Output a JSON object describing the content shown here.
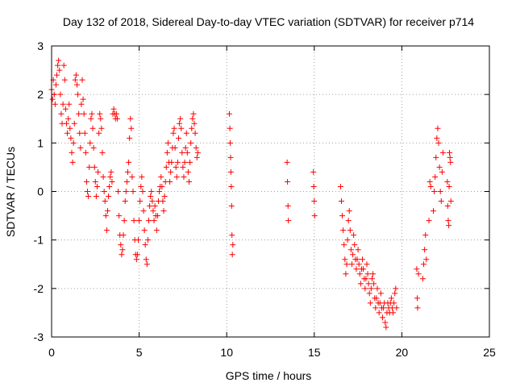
{
  "chart_data": {
    "type": "scatter",
    "title": "Day 132 of 2018, Sidereal Day-to-day VTEC variation (SDTVAR) for receiver p714",
    "xlabel": "GPS time / hours",
    "ylabel": "SDTVAR / TECUs",
    "xlim": [
      0,
      25
    ],
    "ylim": [
      -3,
      3
    ],
    "xticks": [
      "0",
      "5",
      "10",
      "15",
      "20",
      "25"
    ],
    "yticks": [
      "-3",
      "-2",
      "-1",
      "0",
      "1",
      "2",
      "3"
    ],
    "grid": true,
    "marker": "+",
    "marker_color": "#ff0000",
    "series": [
      {
        "name": "SDTVAR",
        "points": [
          [
            0.0,
            2.1
          ],
          [
            0.05,
            1.9
          ],
          [
            0.1,
            2.3
          ],
          [
            0.15,
            2.0
          ],
          [
            0.2,
            1.8
          ],
          [
            0.25,
            2.2
          ],
          [
            0.3,
            2.4
          ],
          [
            0.35,
            2.6
          ],
          [
            0.4,
            2.7
          ],
          [
            0.45,
            2.5
          ],
          [
            0.5,
            2.0
          ],
          [
            0.55,
            1.6
          ],
          [
            0.6,
            1.4
          ],
          [
            0.65,
            1.8
          ],
          [
            0.7,
            2.6
          ],
          [
            0.75,
            2.3
          ],
          [
            0.8,
            1.7
          ],
          [
            0.85,
            1.4
          ],
          [
            0.9,
            1.2
          ],
          [
            0.95,
            1.5
          ],
          [
            1.0,
            1.8
          ],
          [
            1.05,
            1.3
          ],
          [
            1.1,
            1.1
          ],
          [
            1.15,
            0.8
          ],
          [
            1.2,
            0.6
          ],
          [
            1.25,
            1.0
          ],
          [
            1.3,
            1.4
          ],
          [
            1.35,
            2.3
          ],
          [
            1.4,
            2.4
          ],
          [
            1.45,
            2.2
          ],
          [
            1.5,
            2.0
          ],
          [
            1.55,
            1.6
          ],
          [
            1.6,
            1.2
          ],
          [
            1.65,
            0.9
          ],
          [
            1.7,
            1.8
          ],
          [
            1.75,
            2.3
          ],
          [
            1.8,
            1.9
          ],
          [
            1.85,
            1.6
          ],
          [
            1.9,
            1.2
          ],
          [
            1.95,
            0.8
          ],
          [
            2.0,
            0.2
          ],
          [
            2.05,
            0.0
          ],
          [
            2.1,
            -0.1
          ],
          [
            2.15,
            0.5
          ],
          [
            2.2,
            1.0
          ],
          [
            2.25,
            1.5
          ],
          [
            2.3,
            1.6
          ],
          [
            2.35,
            1.3
          ],
          [
            2.4,
            0.9
          ],
          [
            2.45,
            0.5
          ],
          [
            2.5,
            0.2
          ],
          [
            2.55,
            -0.1
          ],
          [
            2.6,
            0.1
          ],
          [
            2.65,
            0.4
          ],
          [
            2.7,
            1.2
          ],
          [
            2.75,
            1.6
          ],
          [
            2.8,
            1.5
          ],
          [
            2.85,
            1.3
          ],
          [
            2.9,
            0.8
          ],
          [
            2.95,
            0.3
          ],
          [
            3.0,
            0.0
          ],
          [
            3.05,
            -0.2
          ],
          [
            3.1,
            -0.5
          ],
          [
            3.15,
            -0.8
          ],
          [
            3.2,
            -0.4
          ],
          [
            3.25,
            -0.1
          ],
          [
            3.3,
            0.1
          ],
          [
            3.35,
            0.3
          ],
          [
            3.4,
            0.4
          ],
          [
            3.45,
            0.2
          ],
          [
            3.5,
            1.6
          ],
          [
            3.55,
            1.7
          ],
          [
            3.6,
            1.6
          ],
          [
            3.65,
            1.5
          ],
          [
            3.7,
            1.6
          ],
          [
            3.75,
            1.5
          ],
          [
            3.8,
            0.0
          ],
          [
            3.85,
            -0.5
          ],
          [
            3.9,
            -0.9
          ],
          [
            3.95,
            -1.1
          ],
          [
            4.0,
            -1.3
          ],
          [
            4.05,
            -1.2
          ],
          [
            4.1,
            -0.9
          ],
          [
            4.15,
            -0.6
          ],
          [
            4.2,
            -0.2
          ],
          [
            4.25,
            0.0
          ],
          [
            4.3,
            0.2
          ],
          [
            4.35,
            0.4
          ],
          [
            4.4,
            0.6
          ],
          [
            4.45,
            1.1
          ],
          [
            4.5,
            1.5
          ],
          [
            4.55,
            1.3
          ],
          [
            4.6,
            0.3
          ],
          [
            4.65,
            0.0
          ],
          [
            4.7,
            -0.6
          ],
          [
            4.75,
            -1.0
          ],
          [
            4.8,
            -1.3
          ],
          [
            4.85,
            -1.4
          ],
          [
            4.9,
            -1.3
          ],
          [
            4.95,
            -1.0
          ],
          [
            5.0,
            -0.6
          ],
          [
            5.05,
            -0.2
          ],
          [
            5.1,
            0.1
          ],
          [
            5.15,
            0.3
          ],
          [
            5.2,
            0.0
          ],
          [
            5.25,
            -0.4
          ],
          [
            5.3,
            -0.8
          ],
          [
            5.35,
            -1.1
          ],
          [
            5.4,
            -1.4
          ],
          [
            5.45,
            -1.5
          ],
          [
            5.5,
            -1.0
          ],
          [
            5.55,
            -0.6
          ],
          [
            5.6,
            -0.3
          ],
          [
            5.65,
            -0.1
          ],
          [
            5.7,
            0.0
          ],
          [
            5.75,
            -0.2
          ],
          [
            5.8,
            -0.4
          ],
          [
            5.85,
            -0.6
          ],
          [
            5.9,
            -0.3
          ],
          [
            5.95,
            -0.5
          ],
          [
            6.0,
            -0.8
          ],
          [
            6.05,
            -0.5
          ],
          [
            6.1,
            -0.2
          ],
          [
            6.15,
            0.0
          ],
          [
            6.2,
            0.1
          ],
          [
            6.25,
            0.3
          ],
          [
            6.3,
            0.1
          ],
          [
            6.35,
            -0.2
          ],
          [
            6.4,
            -0.4
          ],
          [
            6.45,
            -0.1
          ],
          [
            6.5,
            0.2
          ],
          [
            6.55,
            0.5
          ],
          [
            6.6,
            0.8
          ],
          [
            6.65,
            1.0
          ],
          [
            6.7,
            0.6
          ],
          [
            6.75,
            0.2
          ],
          [
            6.8,
            0.4
          ],
          [
            6.85,
            0.6
          ],
          [
            6.9,
            0.9
          ],
          [
            6.95,
            1.2
          ],
          [
            7.0,
            1.3
          ],
          [
            7.05,
            0.9
          ],
          [
            7.1,
            0.5
          ],
          [
            7.15,
            0.3
          ],
          [
            7.2,
            0.6
          ],
          [
            7.25,
            1.1
          ],
          [
            7.3,
            1.4
          ],
          [
            7.35,
            1.5
          ],
          [
            7.4,
            1.3
          ],
          [
            7.45,
            0.8
          ],
          [
            7.5,
            0.5
          ],
          [
            7.55,
            0.3
          ],
          [
            7.6,
            0.6
          ],
          [
            7.65,
            0.9
          ],
          [
            7.7,
            1.2
          ],
          [
            7.75,
            0.8
          ],
          [
            7.8,
            0.4
          ],
          [
            7.85,
            0.2
          ],
          [
            7.9,
            0.6
          ],
          [
            7.95,
            1.0
          ],
          [
            8.0,
            1.3
          ],
          [
            8.05,
            1.5
          ],
          [
            8.1,
            1.6
          ],
          [
            8.15,
            1.4
          ],
          [
            8.2,
            1.2
          ],
          [
            8.25,
            0.9
          ],
          [
            8.3,
            0.7
          ],
          [
            8.35,
            0.8
          ],
          [
            10.15,
            1.6
          ],
          [
            10.18,
            1.3
          ],
          [
            10.2,
            1.0
          ],
          [
            10.22,
            0.7
          ],
          [
            10.24,
            0.4
          ],
          [
            10.26,
            0.1
          ],
          [
            10.28,
            -0.3
          ],
          [
            10.3,
            -0.9
          ],
          [
            10.32,
            -1.3
          ],
          [
            10.35,
            -1.1
          ],
          [
            13.45,
            0.6
          ],
          [
            13.47,
            0.2
          ],
          [
            13.5,
            -0.3
          ],
          [
            13.52,
            -0.6
          ],
          [
            14.95,
            0.4
          ],
          [
            14.97,
            0.1
          ],
          [
            15.0,
            -0.2
          ],
          [
            15.02,
            -0.5
          ],
          [
            16.5,
            0.1
          ],
          [
            16.55,
            -0.2
          ],
          [
            16.6,
            -0.5
          ],
          [
            16.65,
            -0.8
          ],
          [
            16.7,
            -1.1
          ],
          [
            16.75,
            -1.4
          ],
          [
            16.8,
            -1.7
          ],
          [
            16.85,
            -1.5
          ],
          [
            16.9,
            -1.0
          ],
          [
            16.95,
            -0.6
          ],
          [
            17.0,
            -0.4
          ],
          [
            17.05,
            -0.8
          ],
          [
            17.1,
            -1.2
          ],
          [
            17.15,
            -1.5
          ],
          [
            17.2,
            -1.3
          ],
          [
            17.25,
            -0.9
          ],
          [
            17.3,
            -1.1
          ],
          [
            17.35,
            -1.4
          ],
          [
            17.4,
            -1.6
          ],
          [
            17.45,
            -1.4
          ],
          [
            17.5,
            -1.2
          ],
          [
            17.55,
            -1.5
          ],
          [
            17.6,
            -1.7
          ],
          [
            17.65,
            -1.9
          ],
          [
            17.7,
            -1.6
          ],
          [
            17.75,
            -1.4
          ],
          [
            17.8,
            -1.6
          ],
          [
            17.85,
            -1.8
          ],
          [
            17.9,
            -2.0
          ],
          [
            17.95,
            -1.8
          ],
          [
            18.0,
            -1.5
          ],
          [
            18.05,
            -1.7
          ],
          [
            18.1,
            -1.9
          ],
          [
            18.15,
            -2.1
          ],
          [
            18.2,
            -2.3
          ],
          [
            18.25,
            -2.0
          ],
          [
            18.3,
            -1.8
          ],
          [
            18.35,
            -1.7
          ],
          [
            18.4,
            -1.9
          ],
          [
            18.45,
            -2.2
          ],
          [
            18.5,
            -2.4
          ],
          [
            18.55,
            -2.2
          ],
          [
            18.6,
            -2.0
          ],
          [
            18.65,
            -2.3
          ],
          [
            18.7,
            -2.5
          ],
          [
            18.75,
            -2.3
          ],
          [
            18.8,
            -2.1
          ],
          [
            18.85,
            -2.4
          ],
          [
            18.9,
            -2.6
          ],
          [
            18.95,
            -2.4
          ],
          [
            19.0,
            -2.3
          ],
          [
            19.05,
            -2.7
          ],
          [
            19.1,
            -2.8
          ],
          [
            19.15,
            -2.5
          ],
          [
            19.2,
            -2.3
          ],
          [
            19.25,
            -2.4
          ],
          [
            19.3,
            -2.5
          ],
          [
            19.35,
            -2.3
          ],
          [
            19.4,
            -2.2
          ],
          [
            19.45,
            -2.4
          ],
          [
            19.5,
            -2.5
          ],
          [
            19.55,
            -2.3
          ],
          [
            19.6,
            -2.1
          ],
          [
            19.65,
            -2.0
          ],
          [
            19.7,
            -2.4
          ],
          [
            20.85,
            -1.6
          ],
          [
            20.88,
            -2.2
          ],
          [
            20.9,
            -2.4
          ],
          [
            20.95,
            -1.7
          ],
          [
            21.2,
            -1.8
          ],
          [
            21.25,
            -1.5
          ],
          [
            21.3,
            -1.2
          ],
          [
            21.35,
            -0.9
          ],
          [
            21.4,
            -1.4
          ],
          [
            21.55,
            -0.6
          ],
          [
            21.6,
            0.2
          ],
          [
            21.65,
            0.1
          ],
          [
            21.8,
            -0.4
          ],
          [
            21.85,
            0.0
          ],
          [
            21.9,
            0.3
          ],
          [
            21.95,
            0.7
          ],
          [
            22.0,
            1.1
          ],
          [
            22.05,
            1.3
          ],
          [
            22.1,
            1.0
          ],
          [
            22.15,
            0.5
          ],
          [
            22.2,
            0.0
          ],
          [
            22.25,
            -0.2
          ],
          [
            22.3,
            0.4
          ],
          [
            22.35,
            0.8
          ],
          [
            22.6,
            0.2
          ],
          [
            22.62,
            -0.3
          ],
          [
            22.65,
            -0.6
          ],
          [
            22.68,
            -0.7
          ],
          [
            22.7,
            0.1
          ],
          [
            22.72,
            0.8
          ],
          [
            22.75,
            0.7
          ],
          [
            22.78,
            0.6
          ],
          [
            22.8,
            -0.2
          ]
        ]
      }
    ]
  }
}
